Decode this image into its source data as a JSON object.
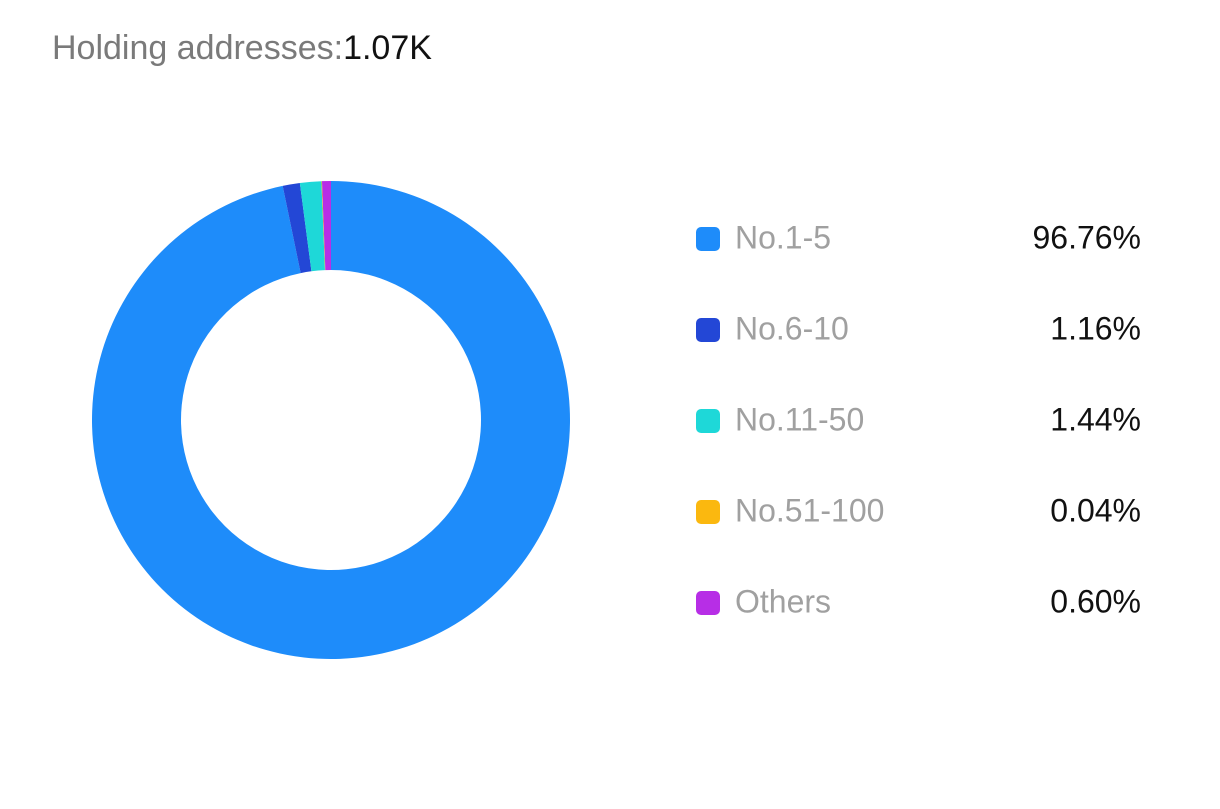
{
  "header": {
    "label": "Holding addresses:",
    "value": "1.07K"
  },
  "chart_data": {
    "type": "donut",
    "categories": [
      "No.1-5",
      "No.6-10",
      "No.11-50",
      "No.51-100",
      "Others"
    ],
    "values": [
      96.76,
      1.16,
      1.44,
      0.04,
      0.6
    ],
    "value_labels": [
      "96.76%",
      "1.16%",
      "1.44%",
      "0.04%",
      "0.60%"
    ],
    "colors": [
      "#1e8cfa",
      "#2347d6",
      "#1ed8d8",
      "#fbb80f",
      "#b72ee6"
    ]
  }
}
